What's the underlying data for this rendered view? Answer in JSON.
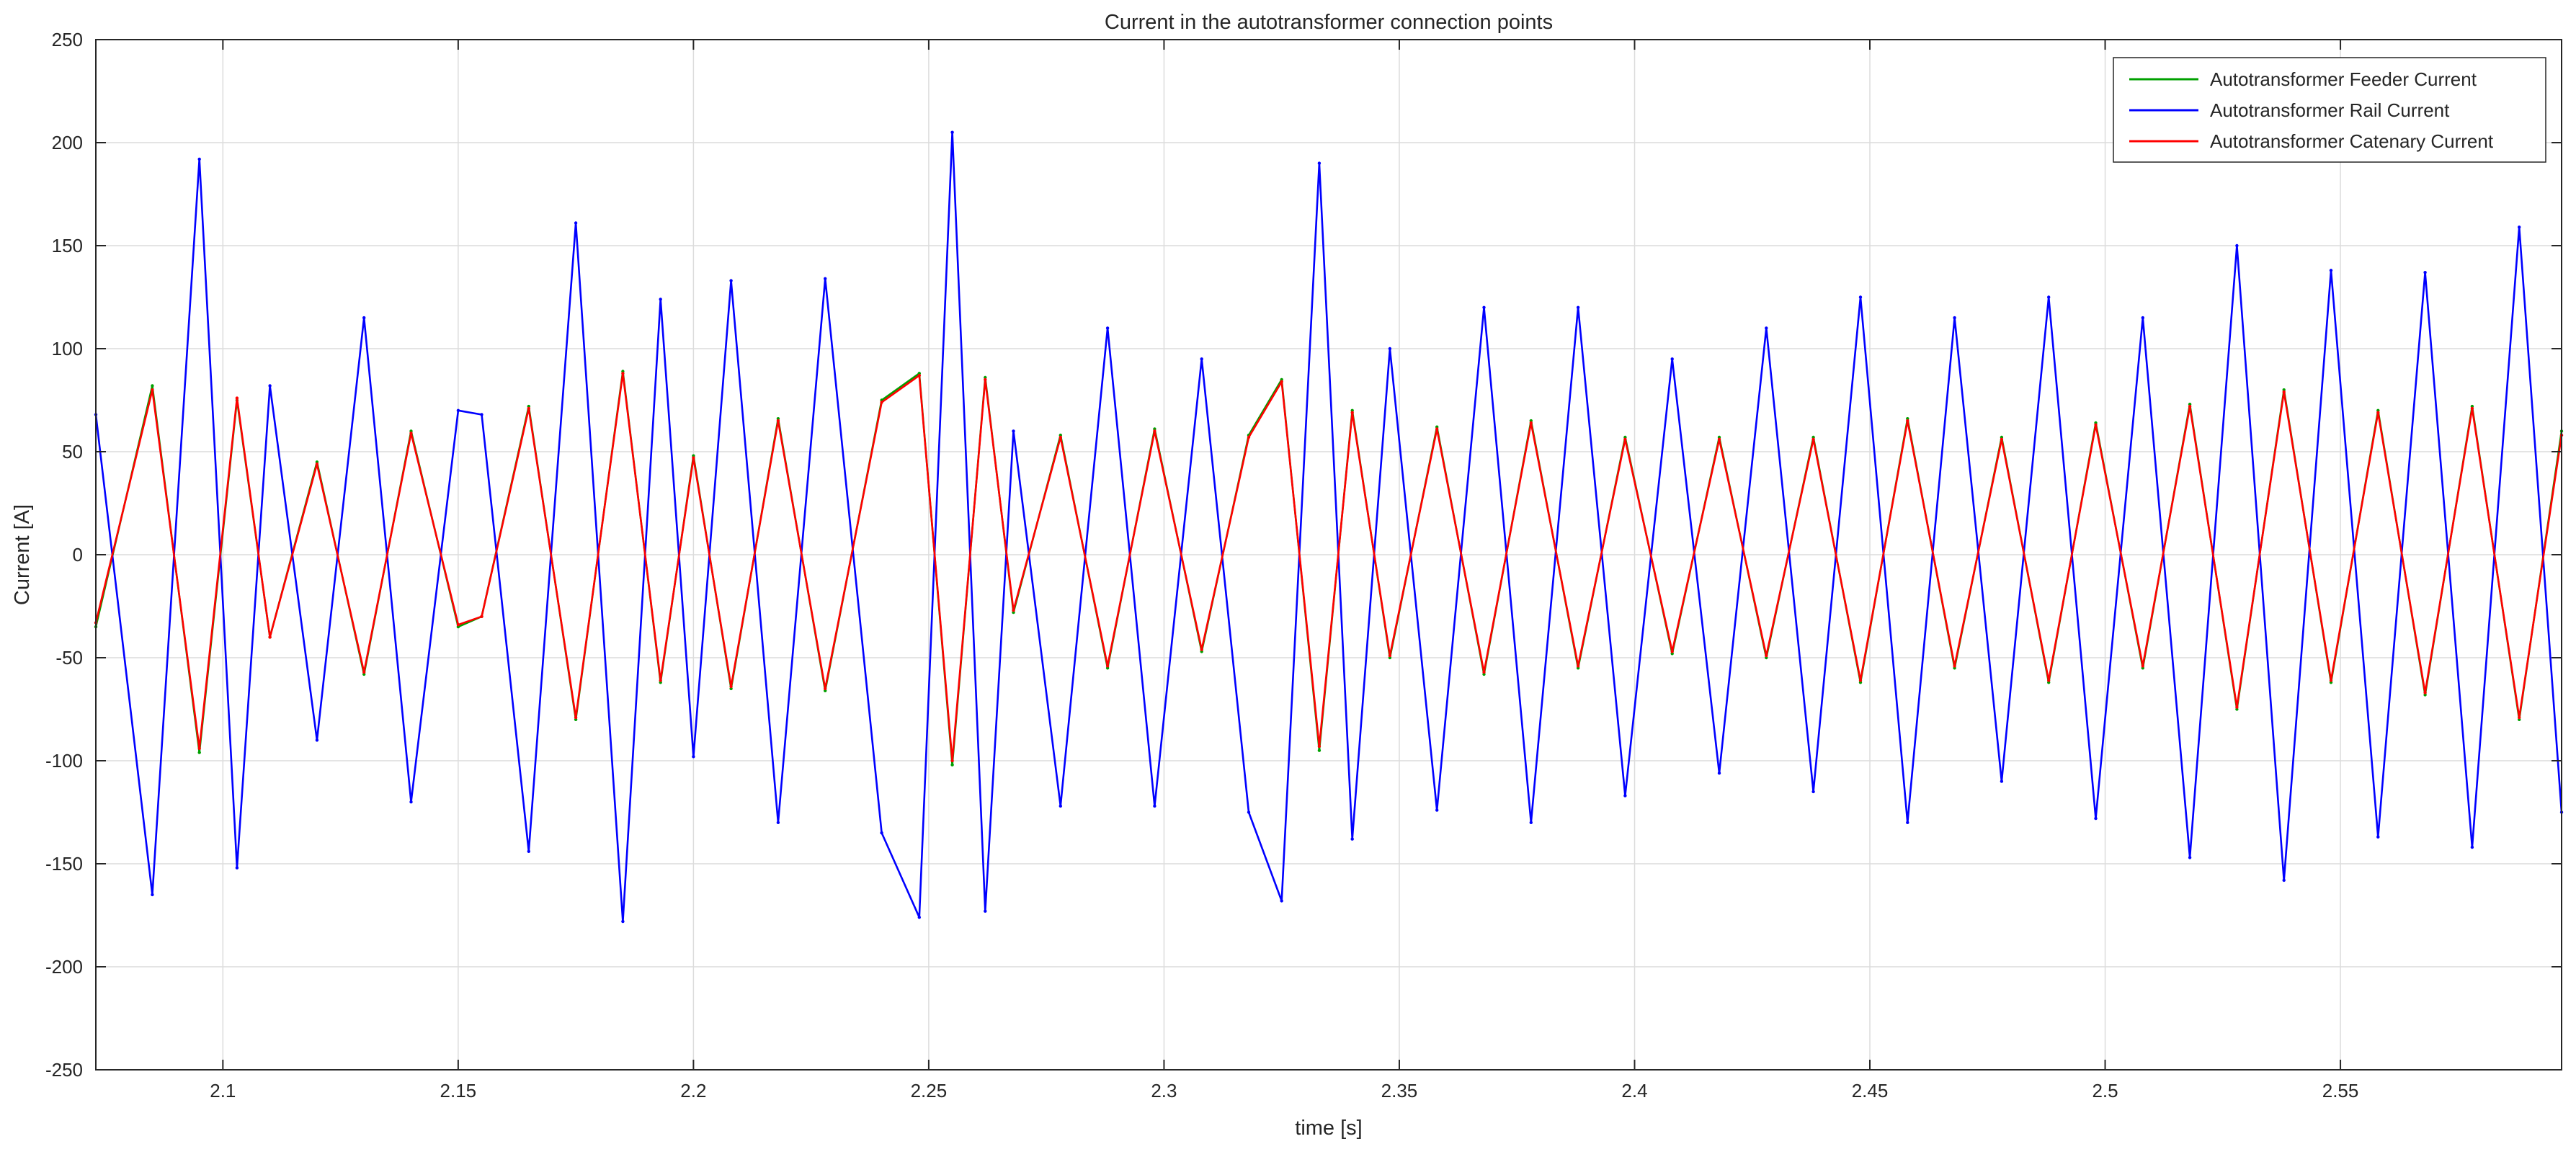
{
  "chart_data": {
    "type": "line",
    "title": "Current in the autotransformer connection points",
    "xlabel": "time [s]",
    "ylabel": "Current [A]",
    "xlim": [
      2.073,
      2.597
    ],
    "ylim": [
      -250,
      250
    ],
    "xticks": [
      2.1,
      2.15,
      2.2,
      2.25,
      2.3,
      2.35,
      2.4,
      2.45,
      2.5,
      2.55
    ],
    "xtick_labels": [
      "2.1",
      "2.15",
      "2.2",
      "2.25",
      "2.3",
      "2.35",
      "2.4",
      "2.45",
      "2.5",
      "2.55"
    ],
    "yticks": [
      -250,
      -200,
      -150,
      -100,
      -50,
      0,
      50,
      100,
      150,
      200,
      250
    ],
    "ytick_labels": [
      "-250",
      "-200",
      "-150",
      "-100",
      "-50",
      "0",
      "50",
      "100",
      "150",
      "200",
      "250"
    ],
    "grid": true,
    "legend_position": "top-right",
    "series": [
      {
        "name": "Autotransformer Feeder Current",
        "color": "#00a000",
        "x": [
          2.073,
          2.085,
          2.095,
          2.103,
          2.11,
          2.12,
          2.13,
          2.14,
          2.15,
          2.155,
          2.165,
          2.175,
          2.185,
          2.193,
          2.2,
          2.208,
          2.218,
          2.228,
          2.24,
          2.248,
          2.255,
          2.262,
          2.268,
          2.278,
          2.288,
          2.298,
          2.308,
          2.318,
          2.325,
          2.333,
          2.34,
          2.348,
          2.358,
          2.368,
          2.378,
          2.388,
          2.398,
          2.408,
          2.418,
          2.428,
          2.438,
          2.448,
          2.458,
          2.468,
          2.478,
          2.488,
          2.498,
          2.508,
          2.518,
          2.528,
          2.538,
          2.548,
          2.558,
          2.568,
          2.578,
          2.588,
          2.597
        ],
        "y": [
          -35,
          82,
          -96,
          75,
          -40,
          45,
          -58,
          60,
          -35,
          -30,
          72,
          -80,
          89,
          -62,
          48,
          -65,
          66,
          -66,
          75,
          88,
          -102,
          86,
          -28,
          58,
          -55,
          61,
          -47,
          58,
          85,
          -95,
          70,
          -50,
          62,
          -58,
          65,
          -55,
          57,
          -48,
          57,
          -50,
          57,
          -62,
          66,
          -55,
          57,
          -62,
          64,
          -55,
          73,
          -75,
          80,
          -62,
          70,
          -68,
          72,
          -80,
          60
        ]
      },
      {
        "name": "Autotransformer Rail Current",
        "color": "#0000ff",
        "x": [
          2.073,
          2.085,
          2.095,
          2.103,
          2.11,
          2.12,
          2.13,
          2.14,
          2.15,
          2.155,
          2.165,
          2.175,
          2.185,
          2.193,
          2.2,
          2.208,
          2.218,
          2.228,
          2.24,
          2.248,
          2.255,
          2.262,
          2.268,
          2.278,
          2.288,
          2.298,
          2.308,
          2.318,
          2.325,
          2.333,
          2.34,
          2.348,
          2.358,
          2.368,
          2.378,
          2.388,
          2.398,
          2.408,
          2.418,
          2.428,
          2.438,
          2.448,
          2.458,
          2.468,
          2.478,
          2.488,
          2.498,
          2.508,
          2.518,
          2.528,
          2.538,
          2.548,
          2.558,
          2.568,
          2.578,
          2.588,
          2.597
        ],
        "y": [
          68,
          -165,
          192,
          -152,
          82,
          -90,
          115,
          -120,
          70,
          68,
          -144,
          161,
          -178,
          124,
          -98,
          133,
          -130,
          134,
          -135,
          -176,
          205,
          -173,
          60,
          -122,
          110,
          -122,
          95,
          -125,
          -168,
          190,
          -138,
          100,
          -124,
          120,
          -130,
          120,
          -117,
          95,
          -106,
          110,
          -115,
          125,
          -130,
          115,
          -110,
          125,
          -128,
          115,
          -147,
          150,
          -158,
          138,
          -137,
          137,
          -142,
          159,
          -125
        ]
      },
      {
        "name": "Autotransformer Catenary Current",
        "color": "#ff0000",
        "x": [
          2.073,
          2.085,
          2.095,
          2.103,
          2.11,
          2.12,
          2.13,
          2.14,
          2.15,
          2.155,
          2.165,
          2.175,
          2.185,
          2.193,
          2.2,
          2.208,
          2.218,
          2.228,
          2.24,
          2.248,
          2.255,
          2.262,
          2.268,
          2.278,
          2.288,
          2.298,
          2.308,
          2.318,
          2.325,
          2.333,
          2.34,
          2.348,
          2.358,
          2.368,
          2.378,
          2.388,
          2.398,
          2.408,
          2.418,
          2.428,
          2.438,
          2.448,
          2.458,
          2.468,
          2.478,
          2.488,
          2.498,
          2.508,
          2.518,
          2.528,
          2.538,
          2.548,
          2.558,
          2.568,
          2.578,
          2.588,
          2.597
        ],
        "y": [
          -33,
          80,
          -94,
          76,
          -40,
          44,
          -57,
          59,
          -34,
          -30,
          71,
          -79,
          88,
          -61,
          47,
          -64,
          65,
          -65,
          74,
          87,
          -100,
          85,
          -27,
          57,
          -54,
          60,
          -46,
          57,
          84,
          -93,
          69,
          -49,
          61,
          -57,
          64,
          -54,
          56,
          -47,
          56,
          -49,
          56,
          -61,
          65,
          -54,
          56,
          -61,
          63,
          -54,
          72,
          -74,
          79,
          -61,
          69,
          -67,
          71,
          -79,
          58
        ]
      }
    ]
  }
}
